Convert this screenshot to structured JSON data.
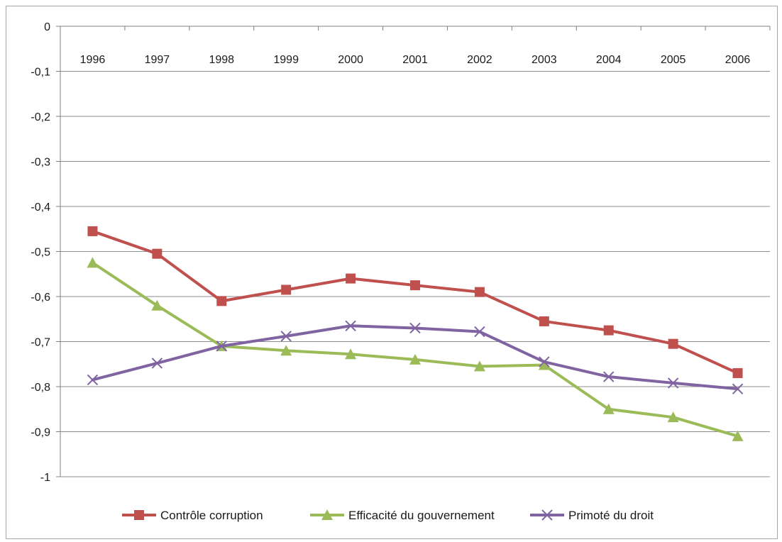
{
  "chart_data": {
    "type": "line",
    "title": "",
    "xlabel": "",
    "ylabel": "",
    "categories": [
      "1996",
      "1997",
      "1998",
      "1999",
      "2000",
      "2001",
      "2002",
      "2003",
      "2004",
      "2005",
      "2006"
    ],
    "ylim": [
      -1,
      0
    ],
    "yticks": [
      0,
      -0.1,
      -0.2,
      -0.3,
      -0.4,
      -0.5,
      -0.6,
      -0.7,
      -0.8,
      -0.9,
      -1
    ],
    "ytick_labels": [
      "0",
      "-0,1",
      "-0,2",
      "-0,3",
      "-0,4",
      "-0,5",
      "-0,6",
      "-0,7",
      "-0,8",
      "-0,9",
      "-1"
    ],
    "xaxis_position": "top",
    "grid": true,
    "legend_position": "bottom",
    "series": [
      {
        "name": "Contrôle corruption",
        "color": "#c0504d",
        "marker": "square",
        "values": [
          -0.455,
          -0.505,
          -0.61,
          -0.585,
          -0.56,
          -0.575,
          -0.59,
          -0.655,
          -0.675,
          -0.705,
          -0.77
        ]
      },
      {
        "name": "Efficacité du gouvernement",
        "color": "#9bbb59",
        "marker": "triangle",
        "values": [
          -0.525,
          -0.62,
          -0.71,
          -0.72,
          -0.728,
          -0.74,
          -0.755,
          -0.752,
          -0.85,
          -0.868,
          -0.91
        ]
      },
      {
        "name": "Primoté du droit",
        "color": "#8064a2",
        "marker": "x",
        "values": [
          -0.785,
          -0.748,
          -0.71,
          -0.688,
          -0.665,
          -0.67,
          -0.678,
          -0.745,
          -0.778,
          -0.792,
          -0.805
        ]
      }
    ]
  }
}
